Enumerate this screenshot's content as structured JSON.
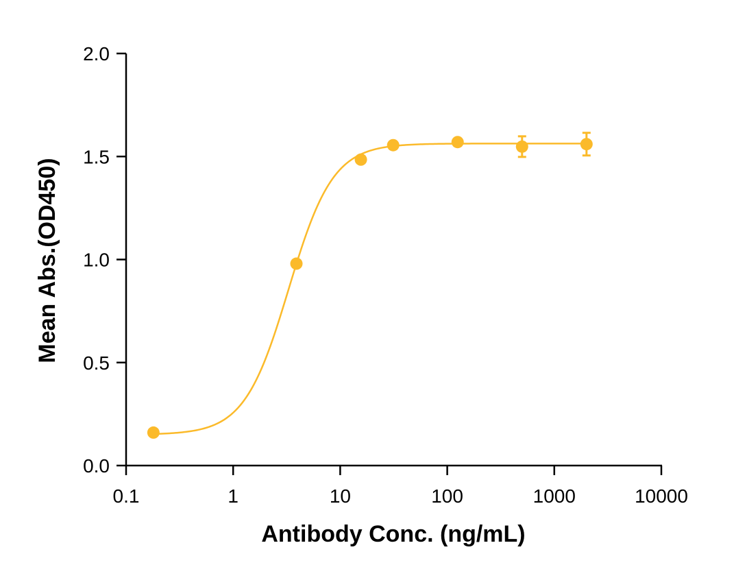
{
  "chart_data": {
    "type": "scatter",
    "title": "",
    "xlabel": "Antibody Conc. (ng/mL)",
    "ylabel": "Mean Abs.(OD450)",
    "x_scale": "log",
    "xlim": [
      0.1,
      10000
    ],
    "ylim": [
      0.0,
      2.0
    ],
    "x_ticks": [
      0.1,
      1,
      10,
      100,
      1000,
      10000
    ],
    "x_tick_labels": [
      "0.1",
      "1",
      "10",
      "100",
      "1000",
      "10000"
    ],
    "y_ticks": [
      0.0,
      0.5,
      1.0,
      1.5,
      2.0
    ],
    "y_tick_labels": [
      "0.0",
      "0.5",
      "1.0",
      "1.5",
      "2.0"
    ],
    "grid": false,
    "color": "#FBBA2A",
    "series": [
      {
        "x": [
          0.18,
          3.9,
          15.6,
          31.25,
          125,
          500,
          2000
        ],
        "y": [
          0.16,
          0.98,
          1.485,
          1.555,
          1.57,
          1.548,
          1.56
        ],
        "error": [
          0.0,
          0.0,
          0.0,
          0.0,
          0.0,
          0.05,
          0.055
        ]
      }
    ],
    "fit_curve": {
      "model": "4PL",
      "bottom": 0.15,
      "top": 1.563,
      "ec50": 3.3,
      "hill": 2.1,
      "x_range": [
        0.18,
        2000
      ]
    }
  }
}
